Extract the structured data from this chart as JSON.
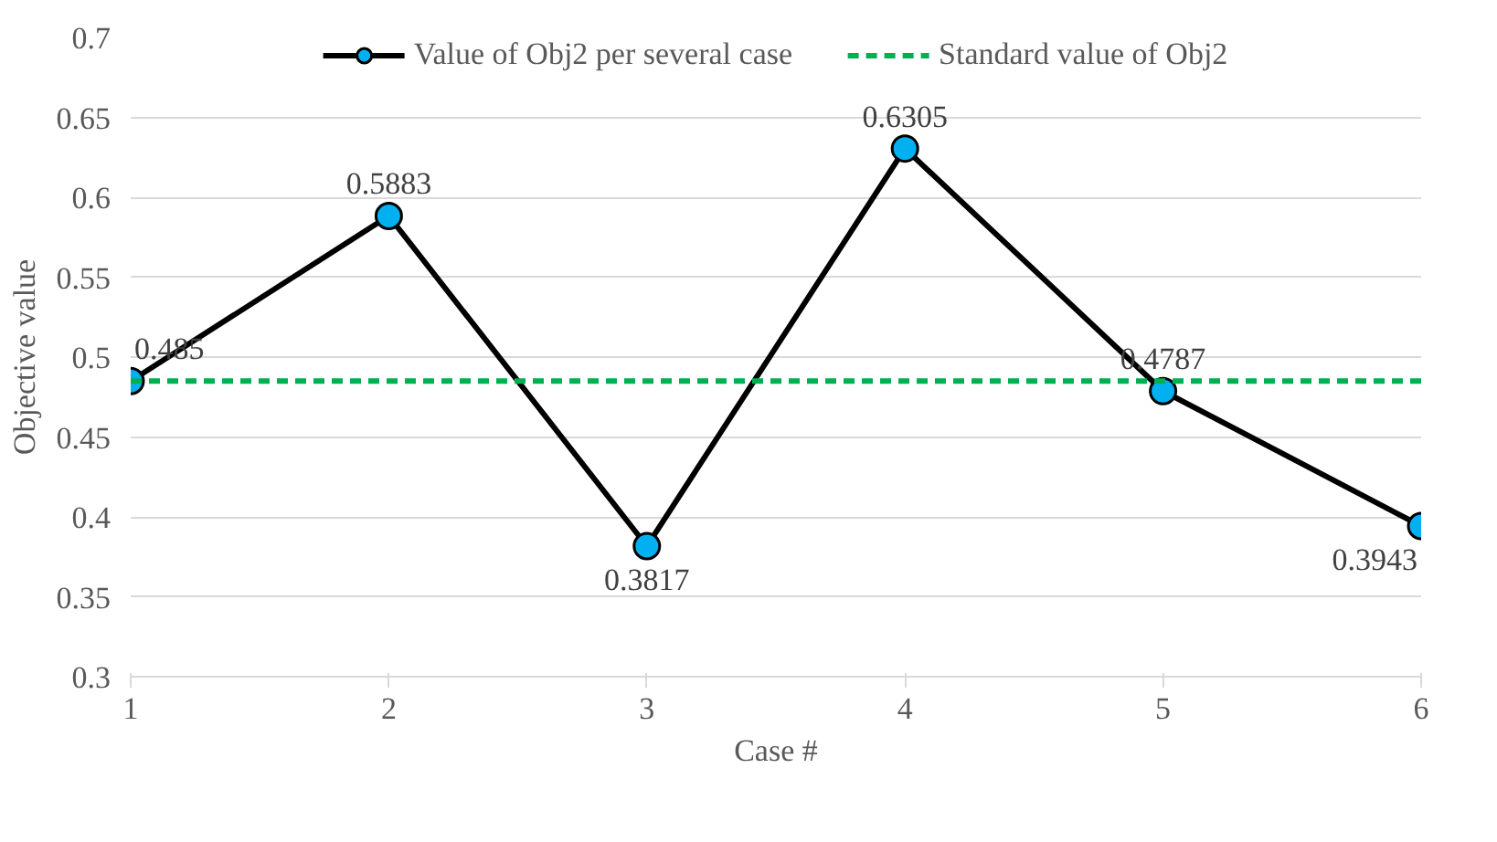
{
  "chart_data": {
    "type": "line",
    "xlabel": "Case #",
    "ylabel": "Objective value",
    "x": [
      1,
      2,
      3,
      4,
      5,
      6
    ],
    "series": [
      {
        "name": "Value of Obj2 per several case",
        "color": "#000000",
        "colors": [
          "#00b0f0",
          "#00b0f0",
          "#00b0f0",
          "#00b0f0",
          "#00b0f0",
          "#00b0f0"
        ],
        "marker": "circle",
        "line_style": "solid",
        "values": [
          0.485,
          0.5883,
          0.3817,
          0.6305,
          0.4787,
          0.3943
        ],
        "value_labels": [
          "0.485",
          "0.5883",
          "0.3817",
          "0.6305",
          "0.4787",
          "0.3943"
        ]
      },
      {
        "name": "Standard value of Obj2",
        "color": "#00b050",
        "marker": "none",
        "line_style": "dashed",
        "values": [
          0.485,
          0.485,
          0.485,
          0.485,
          0.485,
          0.485
        ]
      }
    ],
    "xlim": [
      1,
      6
    ],
    "xticks": [
      1,
      2,
      3,
      4,
      5,
      6
    ],
    "ylim": [
      0.3,
      0.7
    ],
    "yticks": [
      0.3,
      0.35,
      0.4,
      0.45,
      0.5,
      0.55,
      0.6,
      0.65,
      0.7
    ],
    "grid": "y",
    "legend": "top"
  }
}
